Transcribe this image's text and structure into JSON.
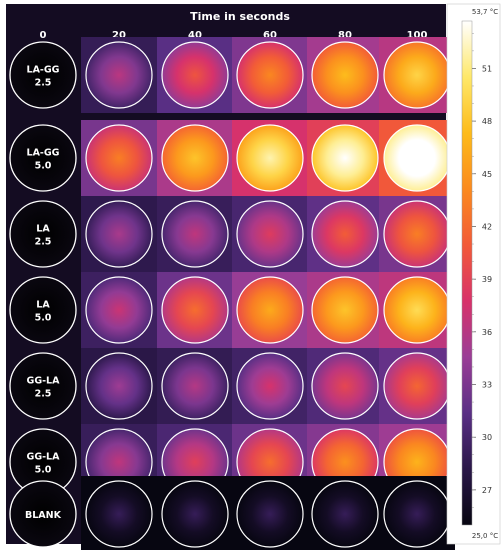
{
  "header": {
    "title": "Time in seconds"
  },
  "columns": [
    "0",
    "20",
    "40",
    "60",
    "80",
    "100"
  ],
  "rows": [
    {
      "label": [
        "LA-GG",
        "2.5"
      ],
      "heat": [
        0.25,
        0.4,
        0.52,
        0.64,
        0.7
      ]
    },
    {
      "label": [
        "LA-GG",
        "5.0"
      ],
      "heat": [
        0.5,
        0.66,
        0.8,
        0.88,
        1.0
      ]
    },
    {
      "label": [
        "LA",
        "2.5"
      ],
      "heat": [
        0.22,
        0.26,
        0.33,
        0.42,
        0.5
      ]
    },
    {
      "label": [
        "LA",
        "5.0"
      ],
      "heat": [
        0.28,
        0.46,
        0.6,
        0.66,
        0.72
      ]
    },
    {
      "label": [
        "GG-LA",
        "2.5"
      ],
      "heat": [
        0.2,
        0.24,
        0.3,
        0.36,
        0.44
      ]
    },
    {
      "label": [
        "GG-LA",
        "5.0"
      ],
      "heat": [
        0.26,
        0.34,
        0.46,
        0.54,
        0.62
      ]
    },
    {
      "label": [
        "BLANK"
      ],
      "heat": [
        0.0,
        0.0,
        0.0,
        0.0,
        0.0
      ]
    }
  ],
  "colorbar": {
    "max_label": "53,7 °C",
    "min_label": "25,0 °C",
    "min_value": 25.0,
    "max_value": 53.7,
    "ticks": [
      "51",
      "48",
      "45",
      "42",
      "39",
      "36",
      "33",
      "30",
      "27"
    ],
    "tick_values": [
      51,
      48,
      45,
      42,
      39,
      36,
      33,
      30,
      27
    ]
  },
  "colors": {
    "background": "#140c22",
    "circle_outline": "#ffffff",
    "label_circle": "#000000",
    "text": "#ffffff",
    "palette": [
      "#070611",
      "#2a1748",
      "#5a2f85",
      "#9a3d96",
      "#d8326a",
      "#f25a38",
      "#fb8a1e",
      "#fdbb1a",
      "#fee86a",
      "#ffffff"
    ]
  }
}
